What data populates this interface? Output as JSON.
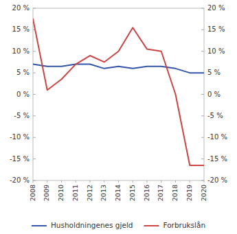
{
  "chart_data": {
    "type": "line",
    "x": [
      2008,
      2009,
      2010,
      2011,
      2012,
      2013,
      2014,
      2015,
      2016,
      2017,
      2018,
      2019,
      2020
    ],
    "series": [
      {
        "name": "Husholdningenes gjeld",
        "color": "#3355aa",
        "values": [
          7.0,
          6.5,
          6.5,
          7.0,
          7.0,
          6.0,
          6.5,
          6.0,
          6.5,
          6.5,
          6.0,
          5.0,
          5.0
        ]
      },
      {
        "name": "Forbrukslån",
        "color": "#cc4444",
        "axis": "y2",
        "values": [
          17.5,
          1.0,
          3.5,
          7.0,
          9.0,
          7.5,
          10.0,
          15.5,
          10.5,
          10.0,
          0.0,
          -16.5,
          -16.5
        ]
      }
    ],
    "xlim": [
      2008,
      2020
    ],
    "xticks": [
      2008,
      2009,
      2010,
      2011,
      2012,
      2013,
      2014,
      2015,
      2016,
      2017,
      2018,
      2019,
      2020
    ],
    "ylim": [
      -20,
      20
    ],
    "yticks": [
      {
        "value": -20,
        "label": "-20 %"
      },
      {
        "value": -15,
        "label": "-15 %"
      },
      {
        "value": -10,
        "label": "-10 %"
      },
      {
        "value": -5,
        "label": "-5 %"
      },
      {
        "value": 0,
        "label": "0 %"
      },
      {
        "value": 5,
        "label": "5 %"
      },
      {
        "value": 10,
        "label": "10 %"
      },
      {
        "value": 15,
        "label": "15 %"
      },
      {
        "value": 20,
        "label": "20 %"
      }
    ],
    "y2lim": [
      -20,
      20
    ],
    "y2ticks": [
      {
        "value": -20,
        "label": "-20 %"
      },
      {
        "value": -15,
        "label": "-15 %"
      },
      {
        "value": -10,
        "label": "-10 %"
      },
      {
        "value": -5,
        "label": "-5 %"
      },
      {
        "value": 0,
        "label": "0 %"
      },
      {
        "value": 5,
        "label": "5 %"
      },
      {
        "value": 10,
        "label": "10 %"
      },
      {
        "value": 15,
        "label": "15 %"
      },
      {
        "value": 20,
        "label": "20 %"
      }
    ],
    "grid": false,
    "legend": "bottom"
  }
}
